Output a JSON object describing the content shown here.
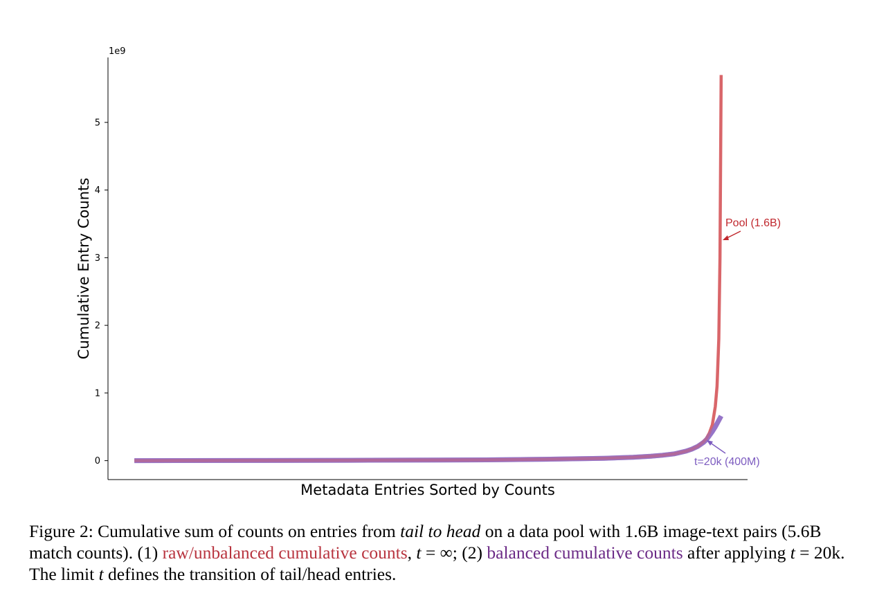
{
  "chart_data": {
    "type": "line",
    "title": "",
    "xlabel": "Metadata Entries Sorted by Counts",
    "ylabel": "Cumulative Entry Counts",
    "y_offset_text": "1e9",
    "yticks": [
      0,
      1,
      2,
      3,
      4,
      5
    ],
    "ylim": [
      -0.28,
      5.96
    ],
    "xlim": [
      -0.045,
      1.045
    ],
    "grid": false,
    "legend": "none",
    "series": [
      {
        "name": "",
        "color": "#d9666a",
        "x": [
          0,
          0.2,
          0.4,
          0.6,
          0.7,
          0.8,
          0.85,
          0.88,
          0.9,
          0.92,
          0.94,
          0.95,
          0.96,
          0.97,
          0.975,
          0.98,
          0.985,
          0.99,
          0.993,
          0.996,
          0.998,
          1.0
        ],
        "y": [
          0,
          0.002,
          0.006,
          0.012,
          0.02,
          0.035,
          0.05,
          0.065,
          0.08,
          0.1,
          0.14,
          0.17,
          0.21,
          0.28,
          0.33,
          0.41,
          0.53,
          0.8,
          1.1,
          1.8,
          3.0,
          5.7
        ]
      },
      {
        "name": "",
        "color": "#8e6cc4",
        "x": [
          0,
          0.2,
          0.4,
          0.6,
          0.7,
          0.8,
          0.85,
          0.88,
          0.9,
          0.92,
          0.94,
          0.95,
          0.96,
          0.97,
          0.975,
          0.98,
          0.985,
          0.99,
          0.995,
          1.0
        ],
        "y": [
          0,
          0.002,
          0.006,
          0.012,
          0.02,
          0.035,
          0.05,
          0.065,
          0.08,
          0.1,
          0.14,
          0.17,
          0.21,
          0.27,
          0.31,
          0.37,
          0.43,
          0.5,
          0.58,
          0.66
        ]
      }
    ],
    "annotations": [
      {
        "text": "Pool (1.6B)",
        "color": "#c0282e"
      },
      {
        "text": "t=20k (400M)",
        "color": "#7d5cc0"
      }
    ]
  },
  "caption": {
    "p1": "Figure 2: Cumulative sum of counts on entries from ",
    "p2": "tail to head",
    "p3": " on a data pool with 1.6B image-text pairs (5.6B match counts). (1) ",
    "p4": "raw/unbalanced cumulative counts",
    "p5": ", ",
    "p6": "t",
    "p7": " = ∞; (2) ",
    "p8": "balanced cumulative counts",
    "p9": " after applying ",
    "p10": "t",
    "p11": " = 20k. The limit ",
    "p12": "t",
    "p13": " defines the transition of tail/head entries."
  }
}
